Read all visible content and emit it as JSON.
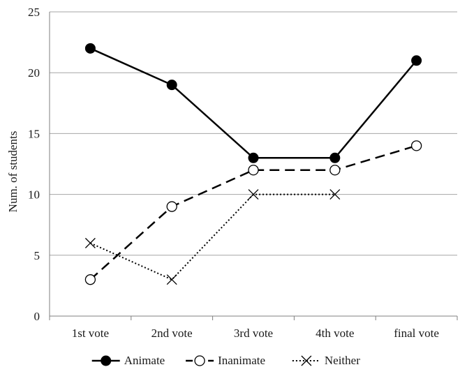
{
  "chart_data": {
    "type": "line",
    "title": "",
    "xlabel": "",
    "ylabel": "Num. of students",
    "categories": [
      "1st vote",
      "2nd vote",
      "3rd vote",
      "4th vote",
      "final vote"
    ],
    "ylim": [
      0,
      25
    ],
    "yticks": [
      0,
      5,
      10,
      15,
      20,
      25
    ],
    "grid": true,
    "legend_position": "bottom",
    "series": [
      {
        "name": "Animate",
        "values": [
          22,
          19,
          13,
          13,
          21
        ],
        "line_style": "solid",
        "marker": "filled-circle",
        "color": "#000000"
      },
      {
        "name": "Inanimate",
        "values": [
          3,
          9,
          12,
          12,
          14
        ],
        "line_style": "dashed",
        "marker": "open-circle",
        "color": "#000000"
      },
      {
        "name": "Neither",
        "values": [
          6,
          3,
          10,
          10,
          null
        ],
        "line_style": "dotted",
        "marker": "x",
        "color": "#000000"
      }
    ]
  }
}
